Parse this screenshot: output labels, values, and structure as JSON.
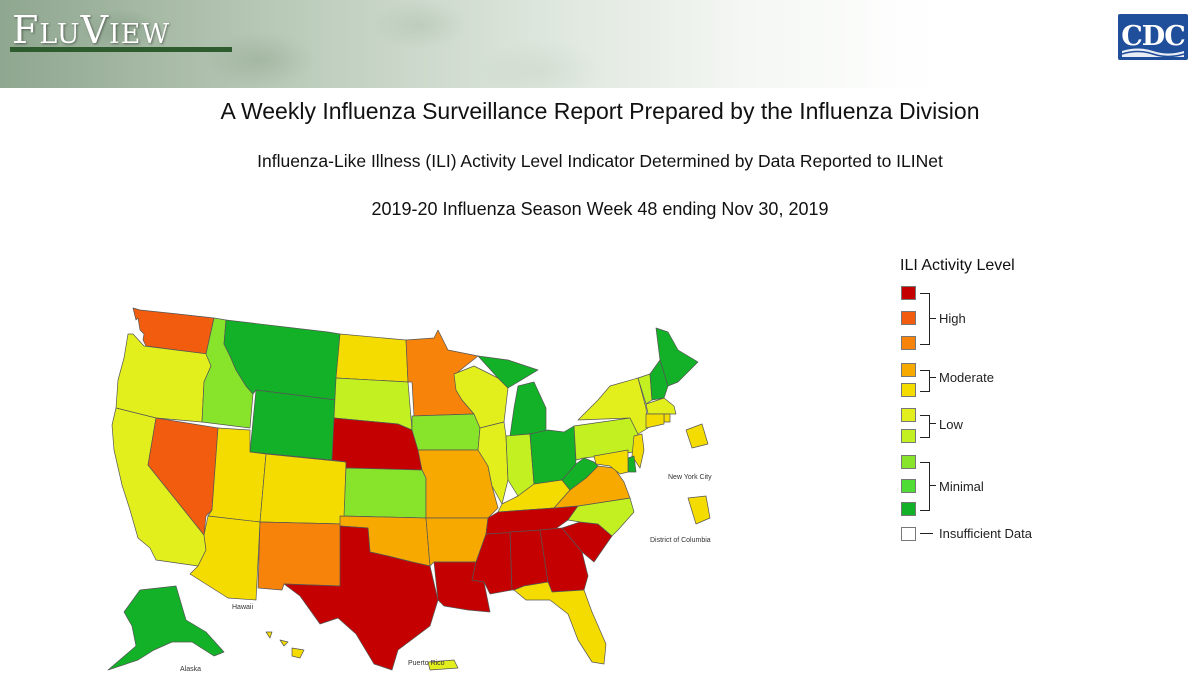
{
  "header": {
    "logo_text": "FluView",
    "agency_logo": "CDC"
  },
  "titles": {
    "line1": "A Weekly Influenza Surveillance Report Prepared by the Influenza Division",
    "line2": "Influenza-Like Illness (ILI) Activity Level Indicator Determined by Data Reported to ILINet",
    "line3": "2019-20 Influenza Season Week 48 ending Nov 30, 2019"
  },
  "legend": {
    "title": "ILI Activity Level",
    "levels": [
      {
        "level": 10,
        "color": "#c50000"
      },
      {
        "level": 9,
        "color": "#f25c0e"
      },
      {
        "level": 8,
        "color": "#f7830a"
      },
      {
        "level": 7,
        "color": "#f7a900"
      },
      {
        "level": 6,
        "color": "#f5dc00"
      },
      {
        "level": 5,
        "color": "#e2ef1c"
      },
      {
        "level": 4,
        "color": "#c2f020"
      },
      {
        "level": 3,
        "color": "#88e42a"
      },
      {
        "level": 2,
        "color": "#4fdc34"
      },
      {
        "level": 1,
        "color": "#12b128"
      }
    ],
    "groups": [
      {
        "label": "High",
        "levels": [
          10,
          9,
          8
        ]
      },
      {
        "label": "Moderate",
        "levels": [
          7,
          6
        ]
      },
      {
        "label": "Low",
        "levels": [
          5,
          4
        ]
      },
      {
        "label": "Minimal",
        "levels": [
          3,
          2,
          1
        ]
      }
    ],
    "insufficient": {
      "label": "Insufficient Data",
      "color": "#ffffff"
    }
  },
  "map_labels": {
    "new_york_city": "New York City",
    "district_of_columbia": "District of Columbia",
    "hawaii": "Hawaii",
    "alaska": "Alaska",
    "puerto_rico": "Puerto Rico"
  },
  "states": {
    "WA": 9,
    "OR": 5,
    "CA": 5,
    "ID": 3,
    "NV": 9,
    "MT": 1,
    "WY": 1,
    "UT": 6,
    "AZ": 6,
    "CO": 6,
    "NM": 8,
    "ND": 6,
    "SD": 4,
    "NE": 10,
    "KS": 3,
    "OK": 7,
    "TX": 10,
    "MN": 8,
    "IA": 3,
    "MO": 7,
    "AR": 7,
    "LA": 10,
    "WI": 5,
    "IL": 5,
    "MS": 10,
    "MI": 1,
    "IN": 4,
    "OH": 1,
    "KY": 6,
    "TN": 10,
    "AL": 10,
    "GA": 10,
    "FL": 6,
    "SC": 10,
    "NC": 4,
    "VA": 7,
    "WV": 1,
    "PA": 4,
    "NY": 5,
    "ME": 1,
    "VT": 4,
    "NH": 1,
    "MA": 5,
    "RI": 6,
    "CT": 6,
    "NJ": 6,
    "DE": 1,
    "MD": 6,
    "AK": 1,
    "HI": 6,
    "PR": 5,
    "NYC": 6,
    "DC": 6
  }
}
